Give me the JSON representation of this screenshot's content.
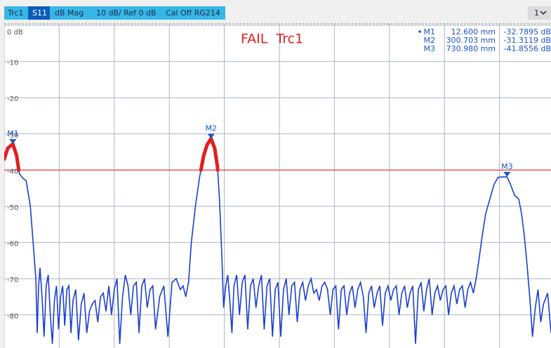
{
  "header": {
    "trace": "Trc1",
    "parameter": "S11",
    "format": "dB Mag",
    "scale": "10 dB/ Ref 0 dB",
    "calibration": "Cal Off RG214",
    "channel": "1"
  },
  "chart_data": {
    "type": "line",
    "annotation": "FAIL Trc1",
    "xlim": [
      0,
      800
    ],
    "xticks": [
      0,
      80,
      160,
      240,
      320,
      400,
      480,
      560,
      640,
      720,
      800
    ],
    "ylim": [
      -89,
      0
    ],
    "yticks": [
      {
        "value": 0,
        "label": "0 dB"
      },
      -10,
      -20,
      -30,
      -40,
      -50,
      -60,
      -70,
      -80
    ],
    "grid": true,
    "limit": -40,
    "limit_color": "#e02020",
    "series": [
      {
        "name": "Trc1",
        "color": "#1a3fd0",
        "x": [
          0,
          5,
          12.6,
          18,
          22,
          26,
          32,
          38,
          42,
          46,
          48,
          50,
          52,
          55,
          58,
          61,
          64,
          67,
          70,
          73,
          76,
          79,
          82,
          85,
          88,
          91,
          94,
          97,
          100,
          104,
          108,
          112,
          116,
          120,
          124,
          128,
          132,
          136,
          140,
          144,
          148,
          152,
          156,
          160,
          164,
          168,
          172,
          176,
          180,
          184,
          188,
          192,
          196,
          200,
          204,
          208,
          212,
          216,
          220,
          226,
          232,
          238,
          244,
          250,
          256,
          260,
          264,
          268,
          272,
          278,
          284,
          290,
          295,
          300.7,
          306,
          310,
          313,
          316,
          319,
          322,
          325,
          328,
          331,
          334,
          338,
          342,
          346,
          350,
          354,
          358,
          362,
          366,
          370,
          374,
          378,
          382,
          386,
          390,
          394,
          398,
          402,
          406,
          410,
          414,
          418,
          422,
          426,
          430,
          434,
          438,
          442,
          446,
          450,
          454,
          458,
          462,
          466,
          470,
          474,
          478,
          482,
          486,
          490,
          494,
          498,
          502,
          506,
          510,
          514,
          518,
          522,
          526,
          530,
          534,
          538,
          542,
          546,
          550,
          554,
          558,
          562,
          566,
          570,
          574,
          578,
          582,
          586,
          590,
          594,
          598,
          602,
          606,
          610,
          614,
          618,
          622,
          626,
          630,
          634,
          638,
          642,
          646,
          650,
          654,
          658,
          662,
          666,
          670,
          674,
          678,
          682,
          686,
          690,
          695,
          700,
          706,
          712,
          718,
          725,
          730.98,
          736,
          742,
          748,
          752,
          756,
          760,
          764,
          768,
          772,
          776,
          780,
          784,
          790,
          795,
          800
        ],
        "values": [
          -37,
          -34,
          -32.8,
          -36,
          -41,
          -42,
          -43,
          -50,
          -60,
          -70,
          -85,
          -72,
          -67,
          -75,
          -86,
          -72,
          -69,
          -80,
          -88,
          -76,
          -72,
          -84,
          -75,
          -72,
          -83,
          -73,
          -72,
          -85,
          -76,
          -73,
          -87,
          -77,
          -74,
          -85,
          -79,
          -77,
          -76,
          -82,
          -75,
          -74,
          -79,
          -72,
          -80,
          -73,
          -70,
          -88,
          -75,
          -69,
          -72,
          -80,
          -72,
          -71,
          -85,
          -72,
          -70,
          -78,
          -73,
          -72,
          -84,
          -75,
          -72,
          -86,
          -71,
          -70,
          -73,
          -72,
          -75,
          -71,
          -60,
          -50,
          -42,
          -36,
          -33,
          -31.3,
          -34,
          -39,
          -48,
          -62,
          -78,
          -72,
          -69,
          -76,
          -85,
          -72,
          -69,
          -80,
          -71,
          -69,
          -84,
          -72,
          -70,
          -78,
          -72,
          -69,
          -84,
          -72,
          -70,
          -86,
          -73,
          -71,
          -86,
          -73,
          -70,
          -80,
          -72,
          -71,
          -82,
          -73,
          -71,
          -76,
          -72,
          -70,
          -74,
          -73,
          -76,
          -72,
          -71,
          -73,
          -80,
          -73,
          -72,
          -84,
          -73,
          -72,
          -80,
          -74,
          -72,
          -78,
          -73,
          -71,
          -75,
          -85,
          -74,
          -72,
          -78,
          -74,
          -72,
          -83,
          -74,
          -72,
          -76,
          -73,
          -72,
          -80,
          -74,
          -72,
          -78,
          -74,
          -72,
          -88,
          -73,
          -71,
          -79,
          -73,
          -70,
          -80,
          -74,
          -72,
          -76,
          -73,
          -72,
          -80,
          -74,
          -72,
          -77,
          -73,
          -72,
          -78,
          -73,
          -71,
          -74,
          -70,
          -65,
          -58,
          -52,
          -48,
          -44,
          -42,
          -41.9,
          -41.9,
          -44,
          -47,
          -48,
          -52,
          -58,
          -66,
          -75,
          -86,
          -78,
          -73,
          -82,
          -77,
          -74,
          -85,
          -78
        ]
      }
    ],
    "markers": [
      {
        "name": "M1",
        "x": 12.6,
        "y": -32.7895,
        "x_label": "12.600 mm",
        "y_label": "-32.7895 dB"
      },
      {
        "name": "M2",
        "x": 300.703,
        "y": -31.3119,
        "x_label": "300.703 mm",
        "y_label": "-31.3119 dB"
      },
      {
        "name": "M3",
        "x": 730.98,
        "y": -41.8556,
        "x_label": "730.980 mm",
        "y_label": "-41.8556 dB"
      }
    ],
    "marker_color": "#1a55c8"
  }
}
